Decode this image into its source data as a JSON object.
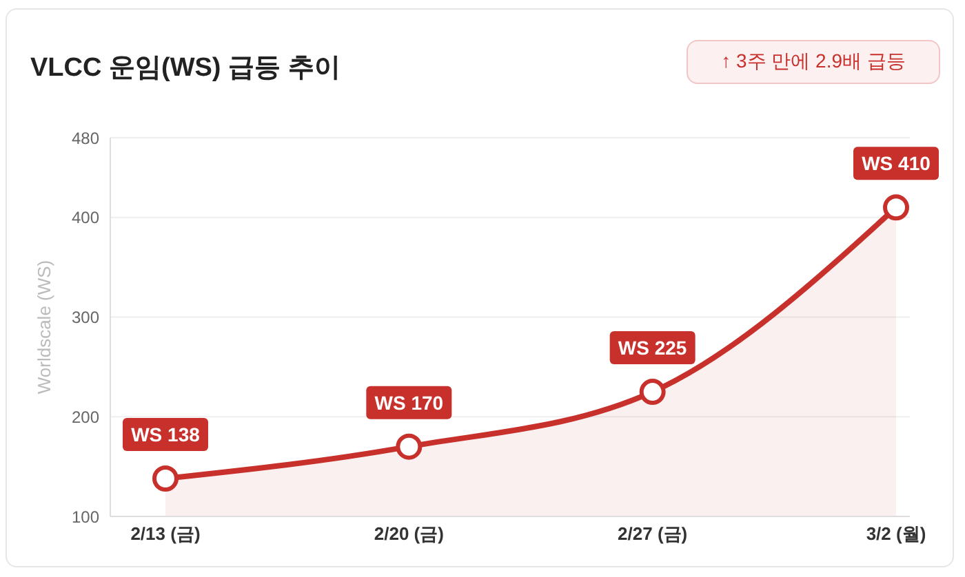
{
  "chart_data": {
    "type": "area",
    "title": "VLCC 운임(WS) 급등 추이",
    "annotations": [
      "↑ 3주 만에 2.9배 급등"
    ],
    "ylabel": "Worldscale (WS)",
    "categories": [
      "2/13 (금)",
      "2/20 (금)",
      "2/27 (금)",
      "3/2 (월)"
    ],
    "series": [
      {
        "color": "#c8302c",
        "values": [
          138,
          170,
          225,
          410
        ],
        "value_labels": [
          "WS 138",
          "WS 170",
          "WS 225",
          "WS 410"
        ]
      }
    ],
    "ylim": [
      100,
      480
    ],
    "yticks": [
      100,
      200,
      300,
      400,
      480
    ],
    "grid": "y",
    "marker": "circle",
    "line_style": "solid"
  }
}
